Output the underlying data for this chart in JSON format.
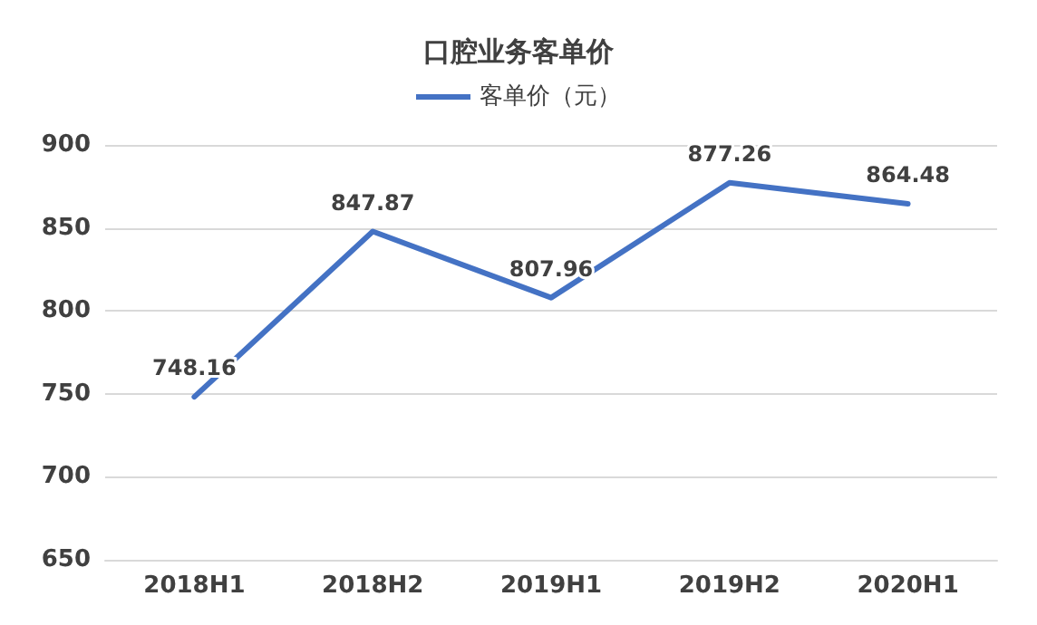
{
  "chart_data": {
    "type": "line",
    "title": "口腔业务客单价",
    "categories": [
      "2018H1",
      "2018H2",
      "2019H1",
      "2019H2",
      "2020H1"
    ],
    "series": [
      {
        "name": "客单价（元）",
        "color": "#4472c4",
        "values": [
          748.16,
          847.87,
          807.96,
          877.26,
          864.48
        ]
      }
    ],
    "ylim": [
      650,
      900
    ],
    "yticks": [
      650,
      700,
      750,
      800,
      850,
      900
    ],
    "grid": "y",
    "legend": "top",
    "marker": "none",
    "line_style": "solid",
    "data_labels": true
  }
}
